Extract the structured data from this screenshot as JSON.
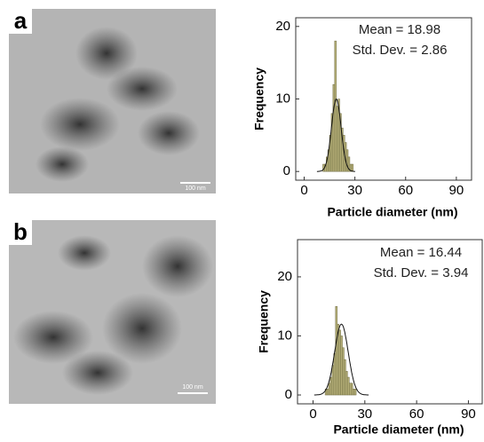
{
  "panels": [
    {
      "label": "a",
      "scale_bar": "100 nm"
    },
    {
      "label": "b",
      "scale_bar": "100 nm"
    }
  ],
  "chart_data": [
    {
      "type": "histogram",
      "xlabel": "Particle diameter (nm)",
      "ylabel": "Frequency",
      "annotations": [
        "Mean = 18.98",
        "Std. Dev. = 2.86"
      ],
      "bins": [
        11,
        12,
        13,
        14,
        15,
        16,
        17,
        18,
        19,
        20,
        21,
        22,
        23,
        24,
        25,
        26,
        27,
        28,
        29
      ],
      "counts": [
        1,
        1,
        2,
        3,
        5,
        8,
        12,
        18,
        9,
        10,
        8,
        6,
        5,
        4,
        3,
        2,
        1,
        1
      ],
      "color": "#b8b27a",
      "fit": {
        "mean": 18.98,
        "sd": 2.86,
        "peak": 10
      },
      "xlim": [
        -5,
        99
      ],
      "ylim": [
        -1.2,
        21.2
      ],
      "xticks": [
        0,
        30,
        60,
        90
      ],
      "yticks": [
        0,
        10,
        20
      ]
    },
    {
      "type": "histogram",
      "xlabel": "Particle diameter (nm)",
      "ylabel": "Frequency",
      "annotations": [
        "Mean = 16.44",
        "Std. Dev. = 3.94"
      ],
      "bins": [
        7,
        8,
        9,
        10,
        11,
        12,
        13,
        14,
        15,
        16,
        17,
        18,
        19,
        20,
        21,
        22,
        23,
        24,
        25
      ],
      "counts": [
        1,
        1,
        2,
        3,
        5,
        7,
        15,
        12,
        11,
        10,
        8,
        6,
        4,
        3,
        2,
        2,
        1,
        1
      ],
      "color": "#b8b27a",
      "fit": {
        "mean": 16.44,
        "sd": 3.94,
        "peak": 12
      },
      "xlim": [
        -9,
        98
      ],
      "ylim": [
        -1.5,
        26.3
      ],
      "xticks": [
        0,
        30,
        60,
        90
      ],
      "yticks": [
        0,
        10,
        20
      ]
    }
  ]
}
